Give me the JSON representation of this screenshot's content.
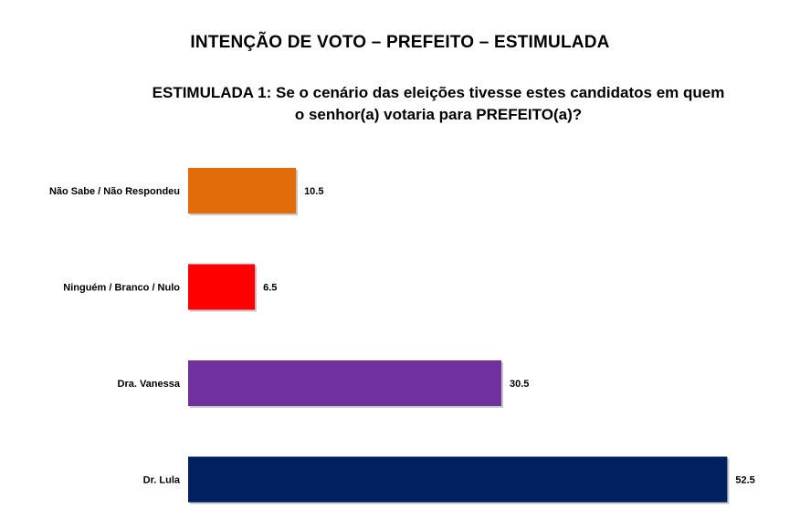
{
  "title": "INTENÇÃO DE VOTO – PREFEITO – ESTIMULADA",
  "subtitle_line1": "ESTIMULADA 1: Se o cenário das eleições tivesse estes candidatos em quem",
  "subtitle_line2": "o senhor(a) votaria para PREFEITO(a)?",
  "chart_data": {
    "type": "bar",
    "orientation": "horizontal",
    "categories": [
      "Não Sabe / Não Respondeu",
      "Ninguém / Branco / Nulo",
      "Dra. Vanessa",
      "Dr. Lula"
    ],
    "values": [
      10.5,
      6.5,
      30.5,
      52.5
    ],
    "colors": [
      "#E36C0A",
      "#FF0000",
      "#7030A0",
      "#002060"
    ],
    "xlim": [
      0,
      53
    ],
    "grid": false,
    "legend": "none"
  }
}
